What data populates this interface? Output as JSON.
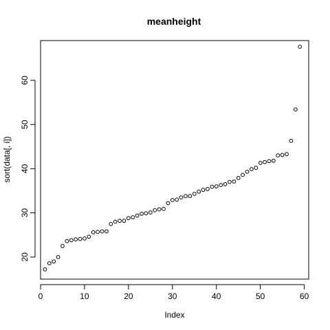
{
  "chart_data": {
    "type": "scatter",
    "title": "meanheight",
    "xlabel": "Index",
    "ylabel": "sort(data[, i])",
    "xlim": [
      0,
      61
    ],
    "ylim": [
      15,
      69
    ],
    "xticks": [
      0,
      10,
      20,
      30,
      40,
      50,
      60
    ],
    "yticks": [
      20,
      30,
      40,
      50,
      60
    ],
    "grid": false,
    "marker": "open-circle",
    "x": [
      1,
      2,
      3,
      4,
      5,
      6,
      7,
      8,
      9,
      10,
      11,
      12,
      13,
      14,
      15,
      16,
      17,
      18,
      19,
      20,
      21,
      22,
      23,
      24,
      25,
      26,
      27,
      28,
      29,
      30,
      31,
      32,
      33,
      34,
      35,
      36,
      37,
      38,
      39,
      40,
      41,
      42,
      43,
      44,
      45,
      46,
      47,
      48,
      49,
      50,
      51,
      52,
      53,
      54,
      55,
      56,
      57,
      58,
      59
    ],
    "y": [
      17.2,
      18.6,
      19.0,
      20.0,
      22.5,
      23.6,
      23.8,
      24.0,
      24.1,
      24.2,
      24.6,
      25.6,
      25.7,
      25.8,
      25.8,
      27.5,
      28.0,
      28.2,
      28.2,
      28.8,
      29.0,
      29.4,
      29.8,
      29.9,
      30.1,
      30.6,
      30.8,
      30.9,
      32.2,
      32.9,
      33.0,
      33.5,
      33.8,
      33.8,
      34.3,
      34.8,
      35.2,
      35.4,
      35.9,
      36.0,
      36.3,
      36.5,
      37.0,
      37.1,
      37.9,
      38.6,
      39.3,
      39.9,
      40.2,
      41.3,
      41.5,
      41.7,
      41.8,
      43.0,
      43.1,
      43.3,
      46.3,
      53.4,
      67.6
    ]
  }
}
